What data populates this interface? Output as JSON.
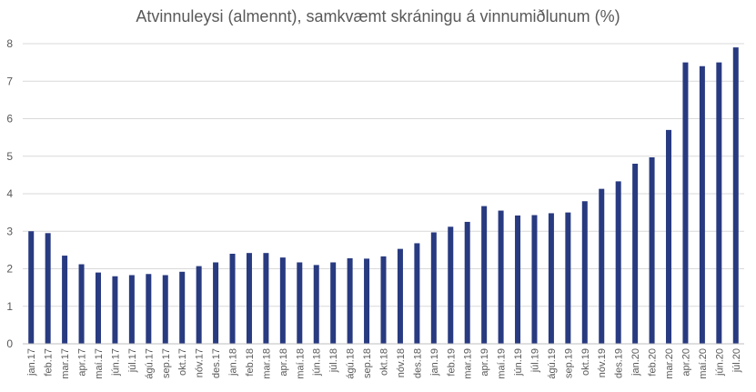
{
  "chart_data": {
    "type": "bar",
    "title": "Atvinnuleysi (almennt), samkvæmt skráningu á vinnumiðlunum (%)",
    "xlabel": "",
    "ylabel": "",
    "ylim": [
      0,
      8
    ],
    "yticks": [
      0,
      1,
      2,
      3,
      4,
      5,
      6,
      7,
      8
    ],
    "grid": true,
    "legend": "none",
    "bar_color": "#283a80",
    "categories": [
      "jan.17",
      "feb.17",
      "mar.17",
      "apr.17",
      "maí.17",
      "jún.17",
      "júl.17",
      "ágú.17",
      "sep.17",
      "okt.17",
      "nóv.17",
      "des.17",
      "jan.18",
      "feb.18",
      "mar.18",
      "apr.18",
      "maí.18",
      "jún.18",
      "júl.18",
      "ágú.18",
      "sep.18",
      "okt.18",
      "nóv.18",
      "des.18",
      "jan.19",
      "feb.19",
      "mar.19",
      "apr.19",
      "maí.19",
      "jún.19",
      "júl.19",
      "ágú.19",
      "sep.19",
      "okt.19",
      "nóv.19",
      "des.19",
      "jan.20",
      "feb.20",
      "mar.20",
      "apr.20",
      "maí.20",
      "jún.20",
      "júl.20"
    ],
    "values": [
      3.0,
      2.95,
      2.35,
      2.12,
      1.9,
      1.8,
      1.83,
      1.86,
      1.83,
      1.92,
      2.07,
      2.17,
      2.4,
      2.42,
      2.42,
      2.3,
      2.17,
      2.1,
      2.17,
      2.28,
      2.27,
      2.33,
      2.53,
      2.68,
      2.97,
      3.12,
      3.25,
      3.67,
      3.55,
      3.42,
      3.43,
      3.48,
      3.5,
      3.8,
      4.13,
      4.33,
      4.8,
      4.97,
      5.7,
      7.5,
      7.4,
      7.5,
      7.9
    ]
  }
}
